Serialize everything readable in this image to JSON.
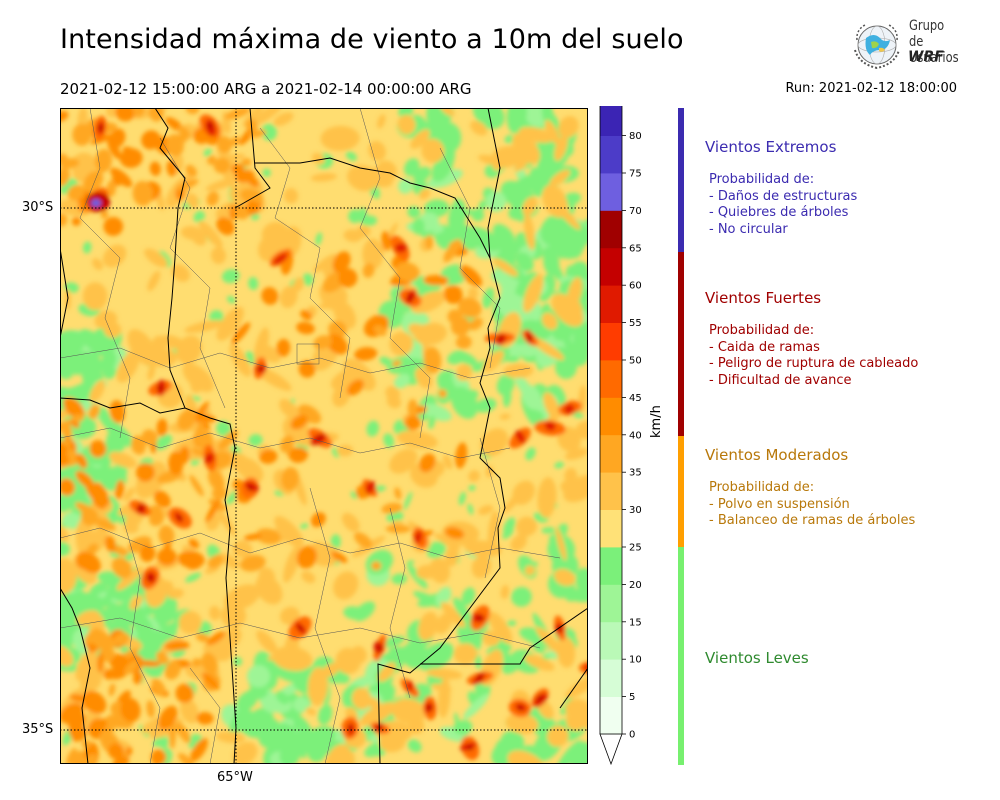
{
  "header": {
    "title": "Intensidad máxima de viento a 10m del suelo",
    "period": "2021-02-12 15:00:00 ARG  a  2021-02-14 00:00:00 ARG",
    "run": "Run: 2021-02-12 18:00:00"
  },
  "logo": {
    "line1": "Grupo de",
    "line2": "Usuarios",
    "line3": "WRF"
  },
  "map": {
    "lat_labels": [
      "30°S",
      "35°S"
    ],
    "lon_labels": [
      "65°W"
    ]
  },
  "colorbar": {
    "unit": "km/h",
    "levels": [
      0,
      5,
      10,
      15,
      20,
      25,
      30,
      35,
      40,
      45,
      50,
      55,
      60,
      65,
      70,
      75,
      80
    ],
    "colors": [
      "#f0fff0",
      "#d6fdd6",
      "#baf9b7",
      "#9ef596",
      "#7bf07a",
      "#ffe177",
      "#ffc24a",
      "#ffa722",
      "#ff8c00",
      "#ff6a00",
      "#ff3c00",
      "#e01a00",
      "#c40000",
      "#a00000",
      "#6e5fe0",
      "#4c3cc8",
      "#3b24b4"
    ],
    "top_color": "#3824b0",
    "bottom_color": "#ffffff"
  },
  "categories": [
    {
      "title": "Vientos Extremos",
      "color": "#3b2bb0",
      "heading": "Probabilidad de:",
      "items": [
        "- Daños de estructuras",
        "- Quiebres de árboles",
        "- No circular"
      ]
    },
    {
      "title": "Vientos Fuertes",
      "color": "#a00000",
      "heading": "Probabilidad de:",
      "items": [
        "- Caida de ramas",
        "- Peligro de ruptura de cableado",
        "- Dificultad de avance"
      ]
    },
    {
      "title": "Vientos Moderados",
      "color": "#b8780a",
      "bar_color": "#ff9f00",
      "heading": "Probabilidad de:",
      "items": [
        "- Polvo en suspensión",
        "- Balanceo de ramas de árboles"
      ]
    },
    {
      "title": "Vientos Leves",
      "color": "#2f8a2f",
      "bar_color": "#77f06f"
    }
  ]
}
